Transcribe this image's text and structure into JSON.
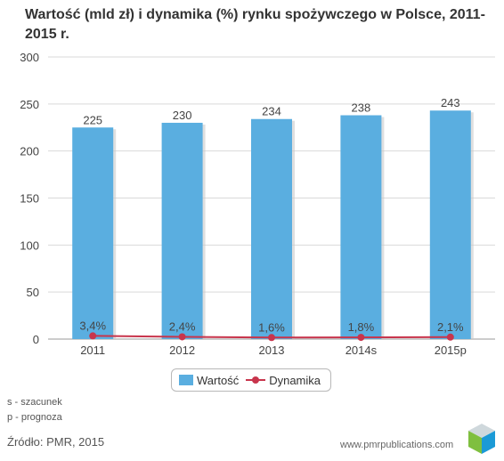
{
  "chart_data": {
    "type": "bar",
    "title": "Wartość (mld zł) i dynamika (%) rynku spożywczego w Polsce, 2011-2015 r.",
    "categories": [
      "2011",
      "2012",
      "2013",
      "2014s",
      "2015p"
    ],
    "series": [
      {
        "name": "Wartość",
        "type": "bar",
        "values": [
          225,
          230,
          234,
          238,
          243
        ],
        "labels": [
          "225",
          "230",
          "234",
          "238",
          "243"
        ],
        "color": "#5aaee0"
      },
      {
        "name": "Dynamika",
        "type": "line",
        "values": [
          3.4,
          2.4,
          1.6,
          1.8,
          2.1
        ],
        "labels": [
          "3,4%",
          "2,4%",
          "1,6%",
          "1,8%",
          "2,1%"
        ],
        "color": "#c8354c"
      }
    ],
    "y_ticks": [
      "0",
      "50",
      "100",
      "150",
      "200",
      "250",
      "300"
    ],
    "ylim": [
      0,
      300
    ],
    "grid": true,
    "legend": "bottom-center"
  },
  "notes": [
    "s - szacunek",
    "p - prognoza"
  ],
  "source": "Źródło: PMR, 2015",
  "site": "www.pmrpublications.com"
}
